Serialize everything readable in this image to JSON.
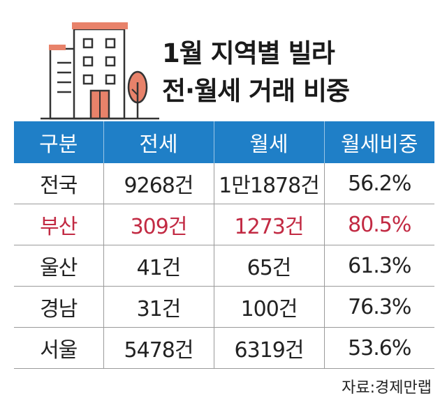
{
  "title": {
    "line1": "1월 지역별 빌라",
    "line2": "전·월세 거래 비중"
  },
  "colors": {
    "header_bg": "#1f7fc7",
    "highlight_text": "#c22a43",
    "building_outline": "#333333",
    "building_accent": "#e8826a"
  },
  "table": {
    "headers": [
      "구분",
      "전세",
      "월세",
      "월세비중"
    ],
    "rows": [
      {
        "region": "전국",
        "jeonse": "9268건",
        "wolse": "1만1878건",
        "ratio": "56.2%",
        "highlight": false
      },
      {
        "region": "부산",
        "jeonse": "309건",
        "wolse": "1273건",
        "ratio": "80.5%",
        "highlight": true
      },
      {
        "region": "울산",
        "jeonse": "41건",
        "wolse": "65건",
        "ratio": "61.3%",
        "highlight": false
      },
      {
        "region": "경남",
        "jeonse": "31건",
        "wolse": "100건",
        "ratio": "76.3%",
        "highlight": false
      },
      {
        "region": "서울",
        "jeonse": "5478건",
        "wolse": "6319건",
        "ratio": "53.6%",
        "highlight": false
      }
    ]
  },
  "source": "자료:경제만랩",
  "icons": [
    "building-illustration",
    "tree-icon"
  ]
}
